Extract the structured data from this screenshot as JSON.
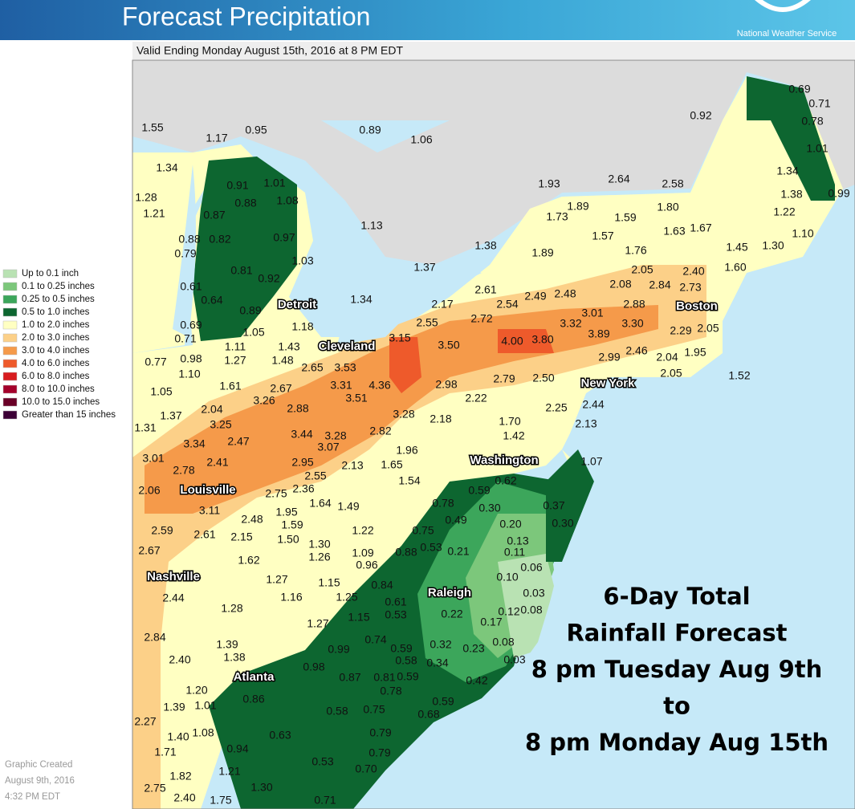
{
  "header": {
    "title": "Forecast Precipitation",
    "agency": "National Weather Service",
    "valid": "Valid Ending Monday August 15th, 2016 at 8 PM EDT"
  },
  "legend": [
    {
      "label": "Up to 0.1 inch",
      "color": "#b9e2b3"
    },
    {
      "label": "0.1 to 0.25 inches",
      "color": "#7cc77b"
    },
    {
      "label": "0.25 to 0.5 inches",
      "color": "#3ca65b"
    },
    {
      "label": "0.5 to 1.0 inches",
      "color": "#0d6630"
    },
    {
      "label": "1.0 to 2.0 inches",
      "color": "#ffffc2"
    },
    {
      "label": "2.0 to 3.0 inches",
      "color": "#fcd088"
    },
    {
      "label": "3.0 to 4.0 inches",
      "color": "#f59a4a"
    },
    {
      "label": "4.0 to 6.0 inches",
      "color": "#ee5a2b"
    },
    {
      "label": "6.0 to 8.0 inches",
      "color": "#d81c1f"
    },
    {
      "label": "8.0 to 10.0 inches",
      "color": "#a4002b"
    },
    {
      "label": "10.0 to 15.0 inches",
      "color": "#6a0027"
    },
    {
      "label": "Greater than 15 inches",
      "color": "#3c0036"
    }
  ],
  "footer": [
    "Graphic Created",
    "August 9th, 2016",
    "4:32 PM EDT"
  ],
  "annotation": [
    "6-Day Total",
    "Rainfall Forecast",
    "8 pm Tuesday Aug 9th",
    "to",
    "8 pm Monday Aug 15th"
  ],
  "map_labels": {
    "cities": [
      "Detroit",
      "Cleveland",
      "Boston",
      "New York",
      "Washington",
      "Louisville",
      "Nashville",
      "Raleigh",
      "Atlanta"
    ],
    "amounts": [
      "1.55",
      "0.95",
      "1.17",
      "0.89",
      "1.06",
      "0.92",
      "0.69",
      "0.71",
      "0.78",
      "1.01",
      "1.34",
      "0.99",
      "1.34",
      "1.28",
      "1.21",
      "0.91",
      "1.01",
      "0.88",
      "1.08",
      "0.87",
      "1.93",
      "2.64",
      "2.58",
      "1.38",
      "1.13",
      "1.73",
      "1.89",
      "1.59",
      "1.80",
      "1.22",
      "0.88",
      "0.82",
      "0.97",
      "1.57",
      "1.63",
      "1.67",
      "1.10",
      "0.79",
      "1.38",
      "1.89",
      "1.76",
      "1.45",
      "1.30",
      "1.03",
      "1.37",
      "0.81",
      "0.92",
      "2.05",
      "2.40",
      "1.60",
      "0.61",
      "2.61",
      "2.08",
      "2.84",
      "2.73",
      "0.64",
      "1.34",
      "2.49",
      "2.48",
      "2.54",
      "2.17",
      "0.89",
      "3.01",
      "2.88",
      "0.69",
      "2.55",
      "2.72",
      "3.32",
      "3.30",
      "1.18",
      "1.05",
      "0.71",
      "3.89",
      "2.29",
      "2.05",
      "3.15",
      "3.50",
      "4.00",
      "3.80",
      "1.11",
      "1.43",
      "0.77",
      "0.98",
      "1.27",
      "1.48",
      "2.46",
      "2.04",
      "1.95",
      "2.99",
      "2.65",
      "3.53",
      "1.10",
      "2.05",
      "1.52",
      "3.31",
      "4.36",
      "2.98",
      "2.79",
      "2.50",
      "1.61",
      "2.67",
      "1.05",
      "3.51",
      "3.26",
      "2.22",
      "2.04",
      "2.88",
      "2.44",
      "2.25",
      "1.37",
      "3.28",
      "2.18",
      "1.70",
      "1.31",
      "3.25",
      "2.13",
      "2.82",
      "3.44",
      "3.28",
      "1.42",
      "2.47",
      "3.34",
      "3.07",
      "1.96",
      "3.01",
      "2.41",
      "2.95",
      "2.13",
      "1.65",
      "2.78",
      "2.55",
      "1.07",
      "2.36",
      "1.54",
      "0.62",
      "0.59",
      "2.06",
      "2.75",
      "1.64",
      "1.49",
      "0.78",
      "0.30",
      "0.37",
      "3.11",
      "2.48",
      "1.95",
      "0.49",
      "1.59",
      "0.20",
      "0.30",
      "2.59",
      "2.61",
      "2.15",
      "1.50",
      "1.22",
      "0.75",
      "0.13",
      "1.30",
      "0.53",
      "0.21",
      "0.11",
      "2.67",
      "1.09",
      "0.88",
      "1.26",
      "1.62",
      "0.96",
      "0.06",
      "1.27",
      "1.15",
      "0.84",
      "0.10",
      "2.44",
      "1.16",
      "1.25",
      "0.61",
      "0.03",
      "1.28",
      "0.53",
      "0.22",
      "0.12",
      "0.08",
      "1.27",
      "1.15",
      "0.17",
      "2.84",
      "1.39",
      "0.74",
      "0.32",
      "0.08",
      "0.99",
      "0.59",
      "0.23",
      "2.40",
      "1.38",
      "0.58",
      "0.34",
      "0.03",
      "0.98",
      "0.87",
      "0.81",
      "0.59",
      "0.42",
      "0.78",
      "1.20",
      "0.86",
      "1.39",
      "1.01",
      "0.59",
      "0.58",
      "0.75",
      "0.68",
      "2.27",
      "1.40",
      "1.08",
      "0.79",
      "0.63",
      "1.71",
      "0.94",
      "0.79",
      "0.53",
      "0.70",
      "1.21",
      "1.82",
      "1.30",
      "2.75",
      "2.40",
      "1.75",
      "0.71"
    ]
  }
}
